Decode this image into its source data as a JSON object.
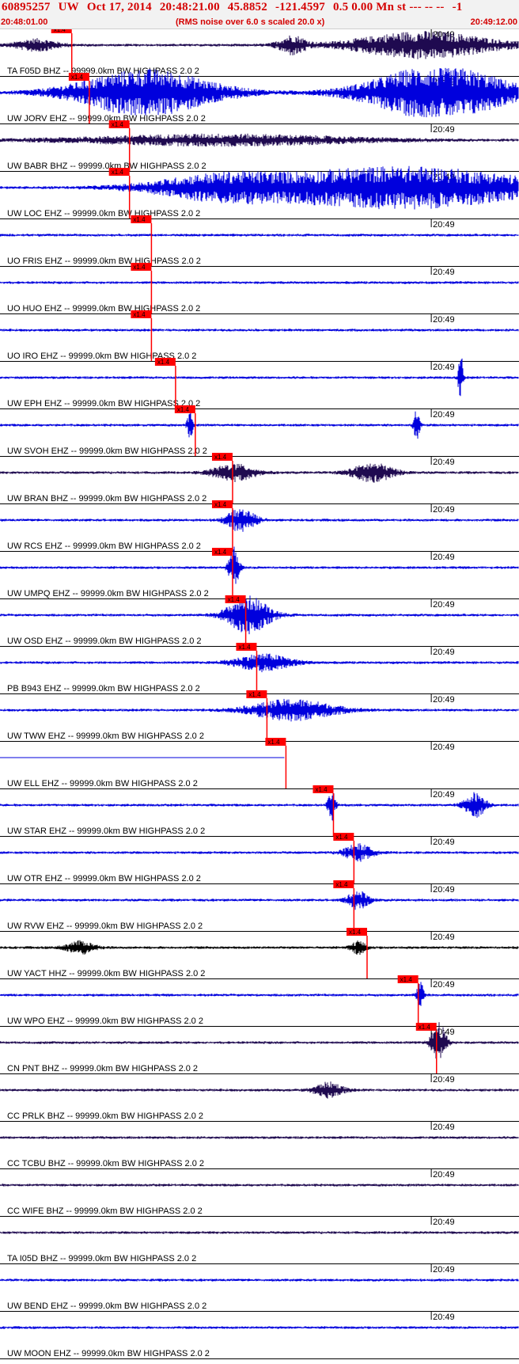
{
  "header": {
    "event_id": "60895257",
    "network": "UW",
    "date": "Oct 17, 2014",
    "time": "20:48:21.00",
    "latitude": "45.8852",
    "longitude": "-121.4597",
    "depth_mag": "0.5 0.00 Mn st --- -- --",
    "suffix": "-1",
    "start_time": "20:48:01.00",
    "noise_note": "(RMS noise over 6.0 s scaled 20.0 x)",
    "end_time": "20:49:12.00"
  },
  "minute_label": "20:49",
  "pick_label": "x1.4",
  "colors": {
    "header_text": "#d40000",
    "trace_blue": "#0000dd",
    "trace_dark": "#1f0a50",
    "trace_black": "#000000",
    "pick_red": "#ff0000"
  },
  "traces": [
    {
      "label": "TA F05D BHZ -- 99999.0km BW  HIGHPASS  2.0  2",
      "color": "dark",
      "pick_s": 9.6,
      "bursts": [
        [
          5,
          3,
          1.4
        ],
        [
          40,
          2,
          2.2
        ],
        [
          58,
          10,
          3.2
        ]
      ]
    },
    {
      "label": "UW JORV EHZ -- 99999.0km BW  HIGHPASS  2.0  2",
      "color": "blue",
      "pick_s": 12.0,
      "bursts": [
        [
          20,
          10,
          5.5
        ],
        [
          60,
          10,
          6.5
        ]
      ]
    },
    {
      "label": "UW BABR BHZ -- 99999.0km BW  HIGHPASS  2.0  2",
      "color": "dark",
      "pick_s": 17.5,
      "bursts": [
        [
          30,
          20,
          1.3
        ]
      ]
    },
    {
      "label": "UW LOC EHZ -- 99999.0km BW  HIGHPASS  2.0  2",
      "color": "blue",
      "pick_s": 17.5,
      "bursts": [
        [
          55,
          20,
          5
        ],
        [
          30,
          10,
          2.5
        ]
      ]
    },
    {
      "label": "UO FRIS EHZ -- 99999.0km BW  HIGHPASS  2.0  2",
      "color": "blue",
      "pick_s": 20.5,
      "bursts": []
    },
    {
      "label": "UO HUO EHZ -- 99999.0km BW  HIGHPASS  2.0  2",
      "color": "blue",
      "pick_s": 20.5,
      "bursts": []
    },
    {
      "label": "UO IRO EHZ -- 99999.0km BW  HIGHPASS  2.0  2",
      "color": "blue",
      "pick_s": 20.5,
      "bursts": []
    },
    {
      "label": "UW EPH EHZ -- 99999.0km BW  HIGHPASS  2.0  2",
      "color": "blue",
      "pick_s": 23.8,
      "bursts": [
        [
          63,
          0.2,
          7
        ]
      ]
    },
    {
      "label": "UW SVOH EHZ -- 99999.0km BW  HIGHPASS  2.0  2",
      "color": "blue",
      "pick_s": 26.5,
      "bursts": [
        [
          26,
          0.4,
          3.5
        ],
        [
          57,
          0.4,
          4
        ]
      ]
    },
    {
      "label": "UW BRAN BHZ -- 99999.0km BW  HIGHPASS  2.0  2",
      "color": "dark",
      "pick_s": 31.6,
      "bursts": [
        [
          32,
          3,
          2
        ],
        [
          51,
          3,
          2.2
        ]
      ]
    },
    {
      "label": "UW RCS EHZ -- 99999.0km BW  HIGHPASS  2.0  2",
      "color": "blue",
      "pick_s": 31.6,
      "bursts": [
        [
          33,
          2,
          2.8
        ]
      ]
    },
    {
      "label": "UW UMPQ EHZ -- 99999.0km BW  HIGHPASS  2.0  2",
      "color": "blue",
      "pick_s": 31.6,
      "bursts": [
        [
          32,
          0.7,
          5
        ]
      ]
    },
    {
      "label": "UW OSD EHZ -- 99999.0km BW  HIGHPASS  2.0  2",
      "color": "blue",
      "pick_s": 33.4,
      "bursts": [
        [
          34,
          3,
          4.5
        ]
      ]
    },
    {
      "label": "PB B943 EHZ -- 99999.0km BW  HIGHPASS  2.0  2",
      "color": "blue",
      "pick_s": 34.9,
      "bursts": [
        [
          36,
          4,
          2
        ]
      ]
    },
    {
      "label": "UW TWW EHZ -- 99999.0km BW  HIGHPASS  2.0  2",
      "color": "blue",
      "pick_s": 36.3,
      "bursts": [
        [
          40,
          6,
          2.5
        ]
      ]
    },
    {
      "label": "UW ELL EHZ -- 99999.0km BW  HIGHPASS  2.0  2",
      "color": "blue",
      "pick_s": 38.9,
      "bursts": [],
      "flat": true
    },
    {
      "label": "UW STAR EHZ -- 99999.0km BW  HIGHPASS  2.0  2",
      "color": "blue",
      "pick_s": 45.4,
      "bursts": [
        [
          45.4,
          0.5,
          4
        ],
        [
          65,
          1.5,
          3
        ]
      ]
    },
    {
      "label": "UW OTR EHZ -- 99999.0km BW  HIGHPASS  2.0  2",
      "color": "blue",
      "pick_s": 48.2,
      "bursts": [
        [
          49,
          2,
          2
        ]
      ]
    },
    {
      "label": "UW RVW EHZ -- 99999.0km BW  HIGHPASS  2.0  2",
      "color": "blue",
      "pick_s": 48.2,
      "bursts": [
        [
          49,
          1.5,
          2.2
        ]
      ]
    },
    {
      "label": "UW YACT HHZ -- 99999.0km BW  HIGHPASS  2.0  2",
      "color": "black",
      "pick_s": 50.0,
      "bursts": [
        [
          11,
          2,
          1.5
        ],
        [
          49,
          1,
          1.6
        ]
      ]
    },
    {
      "label": "UW WPO EHZ -- 99999.0km BW  HIGHPASS  2.0  2",
      "color": "blue",
      "pick_s": 57.0,
      "bursts": [
        [
          57.5,
          0.5,
          3
        ]
      ]
    },
    {
      "label": "CN PNT BHZ -- 99999.0km BW  HIGHPASS  2.0  2",
      "color": "dark",
      "pick_s": 59.5,
      "bursts": [
        [
          60,
          1,
          5
        ]
      ]
    },
    {
      "label": "CC PRLK BHZ -- 99999.0km BW  HIGHPASS  2.0  2",
      "color": "dark",
      "bursts": [
        [
          45,
          2,
          1.8
        ]
      ]
    },
    {
      "label": "CC TCBU BHZ -- 99999.0km BW  HIGHPASS  2.0  2",
      "color": "dark",
      "bursts": []
    },
    {
      "label": "CC WIFE BHZ -- 99999.0km BW  HIGHPASS  2.0  2",
      "color": "dark",
      "bursts": []
    },
    {
      "label": "TA I05D BHZ -- 99999.0km BW  HIGHPASS  2.0  2",
      "color": "dark",
      "bursts": []
    },
    {
      "label": "UW BEND EHZ -- 99999.0km BW  HIGHPASS  2.0  2",
      "color": "blue",
      "bursts": []
    },
    {
      "label": "UW MOON EHZ -- 99999.0km BW  HIGHPASS  2.0  2",
      "color": "blue",
      "bursts": []
    }
  ]
}
